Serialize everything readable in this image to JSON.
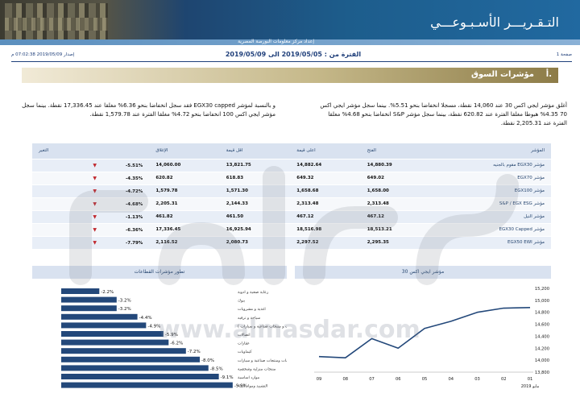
{
  "header": {
    "title": "التـقـريـــر الأسـبـوعـــي",
    "subtitle": "إعداد مركز معلومات البورصة المصرية"
  },
  "meta": {
    "print_date": "إصدار 2019/05/09 07:02:38 م",
    "period": "الفترة من : 2019/05/05 الى 2019/05/09",
    "page": "صفحة 1"
  },
  "section": {
    "number": "أ.",
    "title": "مؤشرات السوق"
  },
  "paragraphs": {
    "right": "أغلق مؤشر ايجي اكس 30 عند 14,060 نقطة، مسجلا انخفاضا بنحو 5.51%. بينما سجل مؤشر ايجي اكس 70 4.35% هبوطا مغلقا الفترة عند 620.82 نقطة، بينما سجل مؤشر S&P انخفاضا بنحو 4.68% مغلقا الفترة عند 2,205.31 نقطة.",
    "left": "و بالنسبة لمؤشر EGX30 capped فقد سجل انخفاضا بنحو 6.36% مغلقا عند 17,336.45 نقطة. بينما سجل مؤشر ايجي اكس 100 انخفاضا بنحو 4.72% مغلقا الفترة عند 1,579.78 نقطة."
  },
  "table": {
    "headers": [
      "المؤشر",
      "الفتح",
      "اعلى قيمة",
      "اقل قيمة",
      "الإغلاق",
      "التغير"
    ],
    "rows": [
      {
        "name": "مؤشر EGX30 مقوم بالجنيه",
        "open": "14,880.39",
        "high": "14,882.64",
        "low": "13,821.75",
        "close": "14,060.00",
        "change": "-5.51%"
      },
      {
        "name": "مؤشر EGX70",
        "open": "649.02",
        "high": "649.32",
        "low": "618.83",
        "close": "620.82",
        "change": "-4.35%"
      },
      {
        "name": "مؤشر EGX100",
        "open": "1,658.00",
        "high": "1,658.68",
        "low": "1,571.30",
        "close": "1,579.78",
        "change": "-4.72%"
      },
      {
        "name": "مؤشر S&P / EGX ESG",
        "open": "2,313.48",
        "high": "2,313.48",
        "low": "2,144.33",
        "close": "2,205.31",
        "change": "-4.68%"
      },
      {
        "name": "مؤشر النيل",
        "open": "467.12",
        "high": "467.12",
        "low": "461.50",
        "close": "461.82",
        "change": "-1.13%"
      },
      {
        "name": "مؤشر EGX30 Capped",
        "open": "18,513.21",
        "high": "18,516.98",
        "low": "16,925.94",
        "close": "17,336.45",
        "change": "-6.36%"
      },
      {
        "name": "مؤشر EGX50 EWI",
        "open": "2,295.35",
        "high": "2,297.52",
        "low": "2,080.73",
        "close": "2,116.52",
        "change": "-7.79%"
      }
    ],
    "down_arrow": "▼"
  },
  "charts_titles": {
    "sector": "تطور مؤشرات القطاعات",
    "egx30": "مؤشر ايجي اكس 30"
  },
  "watermark": {
    "text": "www.almasdar.com"
  },
  "colors": {
    "navy": "#1f3f7a",
    "bar": "#23487a",
    "down": "#c0262c",
    "header_blue": "#1d5d8c",
    "gold": "#8d7c48"
  },
  "chart_data": [
    {
      "type": "bar",
      "title": "تطور مؤشرات القطاعات",
      "categories": [
        "رعاية صحية و ادوية",
        "بنوك",
        "اغذية و مشروبات",
        "سياحة و ترفيه",
        "( خدمات و منتجات صناعية و سيارات )",
        "اتصالات",
        "عقارات",
        "كيماويات",
        "خدمات ومنتجات صناعية و سيارات",
        "منتجات منزلية وشخصية",
        "موارد اساسية",
        "التشييد ومواد البناء"
      ],
      "values": [
        -2.2,
        -3.2,
        -3.2,
        -4.4,
        -4.9,
        -5.9,
        -6.2,
        -7.2,
        -8.0,
        -8.5,
        -9.1,
        -9.9
      ],
      "value_labels": [
        "-2.2%",
        "-3.2%",
        "-3.2%",
        "-4.4%",
        "-4.9%",
        "-5.9%",
        "-6.2%",
        "-7.2%",
        "-8.0%",
        "-8.5%",
        "-9.1%",
        "-9.9%"
      ]
    },
    {
      "type": "line",
      "title": "مؤشر ايجي اكس 30",
      "x": [
        "09",
        "08",
        "07",
        "06",
        "05",
        "04",
        "03",
        "02",
        "01"
      ],
      "x_footer": "مايو 2019",
      "series": [
        {
          "values": [
            14060,
            14040,
            14360,
            14200,
            14530,
            14650,
            14800,
            14870,
            14880
          ]
        }
      ],
      "ylim": [
        13800,
        15200
      ],
      "yticks": [
        "15,200",
        "15,000",
        "14,800",
        "14,600",
        "14,400",
        "14,200",
        "14,000",
        "13,800"
      ],
      "grid": false
    }
  ]
}
